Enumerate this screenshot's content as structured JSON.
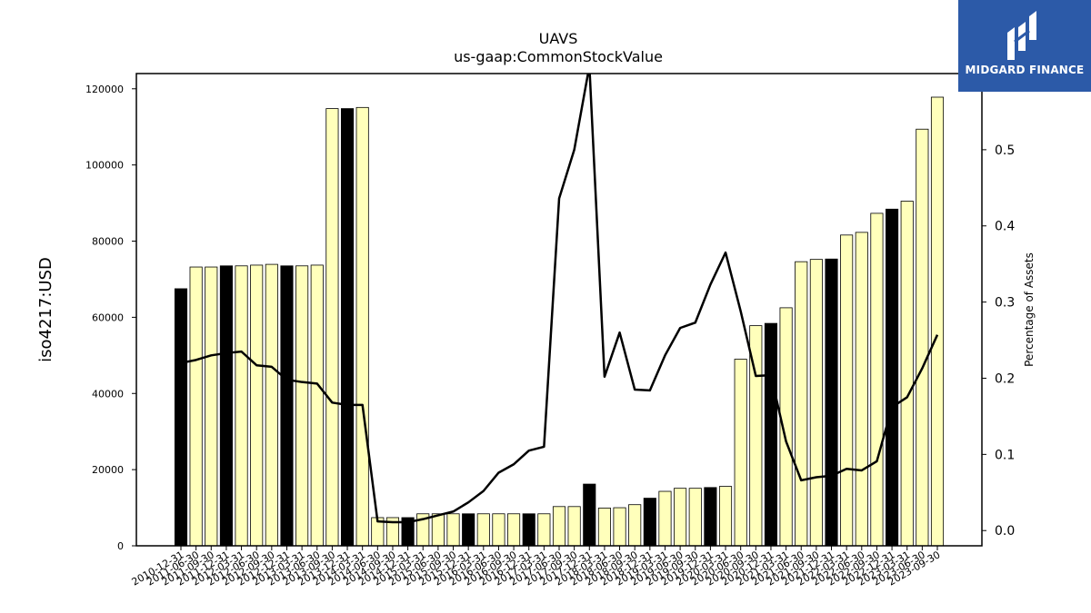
{
  "brand": {
    "name": "MIDGARD FINANCE",
    "bg_color": "#2c5aa8"
  },
  "chart_data": {
    "type": "bar",
    "title": "UAVS",
    "subtitle": "us-gaap:CommonStockValue",
    "ylabel": "iso4217:USD",
    "y2label": "Percentage of Assets",
    "ylim": [
      0,
      124000
    ],
    "y2lim": [
      -0.02,
      0.6
    ],
    "yticks": [
      0,
      20000,
      40000,
      60000,
      80000,
      100000,
      120000
    ],
    "y2ticks": [
      0.0,
      0.1,
      0.2,
      0.3,
      0.4,
      0.5
    ],
    "bar_colors": {
      "annual": "#000000",
      "quarterly": "#ffffbb"
    },
    "line_color": "#000000",
    "categories": [
      "2010-12-31",
      "2011-06-30",
      "2011-09-30",
      "2011-12-31",
      "2012-03-31",
      "2012-06-30",
      "2012-09-30",
      "2012-12-31",
      "2013-03-31",
      "2013-06-30",
      "2013-09-30",
      "2013-12-31",
      "2014-03-31",
      "2014-06-30",
      "2014-09-30",
      "2014-12-31",
      "2015-03-31",
      "2015-06-30",
      "2015-09-30",
      "2015-12-31",
      "2016-03-31",
      "2016-06-30",
      "2016-09-30",
      "2016-12-31",
      "2017-03-31",
      "2017-06-30",
      "2017-09-30",
      "2017-12-31",
      "2018-03-31",
      "2018-06-30",
      "2018-09-30",
      "2018-12-31",
      "2019-03-31",
      "2019-06-30",
      "2019-09-30",
      "2019-12-31",
      "2020-03-31",
      "2020-06-30",
      "2020-09-30",
      "2020-12-31",
      "2021-03-31",
      "2021-06-30",
      "2021-09-30",
      "2021-12-31",
      "2022-03-31",
      "2022-06-30",
      "2022-09-30",
      "2022-12-31",
      "2023-03-31",
      "2023-06-30",
      "2023-09-30"
    ],
    "values": [
      67500,
      73200,
      73200,
      73500,
      73500,
      73700,
      73900,
      73500,
      73500,
      73700,
      114800,
      114800,
      115100,
      7400,
      7400,
      7400,
      8400,
      8400,
      8400,
      8400,
      8400,
      8400,
      8400,
      8400,
      8400,
      10300,
      10300,
      16200,
      9900,
      10000,
      10800,
      12500,
      14300,
      15100,
      15100,
      15300,
      15600,
      49000,
      57800,
      58400,
      62500,
      74600,
      75200,
      75300,
      81600,
      82300,
      87300,
      88400,
      90500,
      109400,
      117800
    ],
    "annual": [
      true,
      false,
      false,
      true,
      false,
      false,
      false,
      true,
      false,
      false,
      false,
      true,
      false,
      false,
      false,
      true,
      false,
      false,
      false,
      true,
      false,
      false,
      false,
      true,
      false,
      false,
      false,
      true,
      false,
      false,
      false,
      true,
      false,
      false,
      false,
      true,
      false,
      false,
      false,
      true,
      false,
      false,
      false,
      true,
      false,
      false,
      false,
      true,
      false,
      false,
      false
    ],
    "series": [
      {
        "values": [
          0.22,
          0.224,
          0.23,
          0.233,
          0.235,
          0.217,
          0.215,
          0.198,
          0.195,
          0.193,
          0.168,
          0.165,
          0.165,
          0.012,
          0.011,
          0.011,
          0.015,
          0.02,
          0.025,
          0.037,
          0.052,
          0.076,
          0.087,
          0.105,
          0.11,
          0.436,
          0.5,
          0.61,
          0.202,
          0.26,
          0.185,
          0.184,
          0.23,
          0.266,
          0.273,
          0.323,
          0.365,
          0.288,
          0.203,
          0.204,
          0.117,
          0.066,
          0.07,
          0.072,
          0.081,
          0.079,
          0.091,
          0.162,
          0.175,
          0.213,
          0.257
        ]
      }
    ],
    "grid": false,
    "legend": "none"
  }
}
